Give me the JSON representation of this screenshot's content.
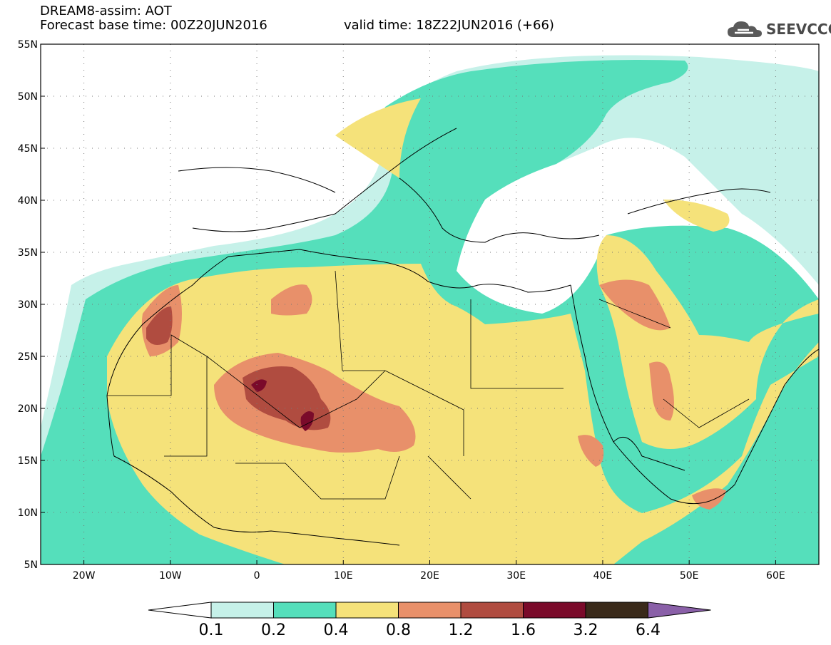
{
  "header": {
    "title_line1": "DREAM8-assim: AOT",
    "title_line2": "Forecast base time: 00Z20JUN2016",
    "valid_time": "valid time: 18Z22JUN2016 (+66)"
  },
  "logo": {
    "text": "SEEVCCC",
    "icon": "cloud-logo-icon"
  },
  "map": {
    "lon_labels": [
      "20W",
      "10W",
      "0",
      "10E",
      "20E",
      "30E",
      "40E",
      "50E",
      "60E"
    ],
    "lat_labels": [
      "55N",
      "50N",
      "45N",
      "40N",
      "35N",
      "30N",
      "25N",
      "20N",
      "15N",
      "10N",
      "5N"
    ],
    "lon_range": [
      -25,
      65
    ],
    "lat_range": [
      5,
      55
    ],
    "variable": "AOT"
  },
  "colorbar": {
    "tick_labels": [
      "0.1",
      "0.2",
      "0.4",
      "0.8",
      "1.2",
      "1.6",
      "3.2",
      "6.4"
    ],
    "colors": [
      "#ffffff",
      "#c6f1e9",
      "#55dfbb",
      "#f5e27a",
      "#e8906a",
      "#b04c40",
      "#7a0a2a",
      "#3a2a1a",
      "#8a60a8"
    ]
  }
}
